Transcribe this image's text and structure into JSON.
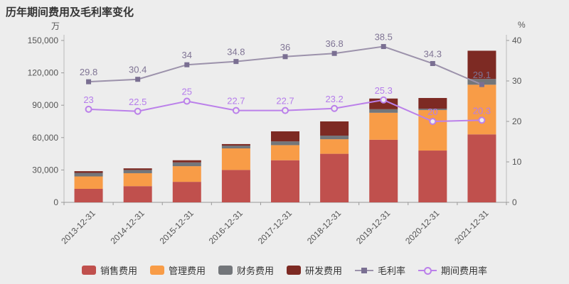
{
  "title": "历年期间费用及毛利率变化",
  "left_axis_unit": "万",
  "right_axis_unit": "%",
  "colors": {
    "background": "#ededed",
    "sales": "#c0504d",
    "admin": "#f89c47",
    "finance": "#73767a",
    "rd": "#7d2a23",
    "gross_margin": "#9c92ab",
    "gross_margin_marker": "#7a6f92",
    "gross_margin_label": "#7f7494",
    "expense_ratio": "#bb80ea",
    "axis_line": "#bbbbbb",
    "tick_text": "#555555"
  },
  "chart_data": {
    "type": "bar",
    "title": "历年期间费用及毛利率变化",
    "categories": [
      "2013-12-31",
      "2014-12-31",
      "2015-12-31",
      "2016-12-31",
      "2017-12-31",
      "2018-12-31",
      "2019-12-31",
      "2020-12-31",
      "2021-12-31"
    ],
    "bar_series": [
      {
        "name": "销售费用",
        "color": "#c0504d",
        "values": [
          12500,
          15000,
          19000,
          30000,
          39000,
          45000,
          58000,
          48000,
          63000
        ]
      },
      {
        "name": "管理费用",
        "color": "#f89c47",
        "values": [
          11500,
          12000,
          14500,
          20000,
          14000,
          13500,
          25000,
          37500,
          46000
        ]
      },
      {
        "name": "财务费用",
        "color": "#73767a",
        "values": [
          3300,
          3000,
          3500,
          2600,
          3500,
          3300,
          3300,
          1300,
          5300
        ]
      },
      {
        "name": "研发费用",
        "color": "#7d2a23",
        "values": [
          1600,
          1500,
          2000,
          1400,
          9300,
          13200,
          9900,
          9900,
          26200
        ]
      }
    ],
    "line_series": [
      {
        "name": "毛利率",
        "axis": "right",
        "marker": "square",
        "color": "#9c92ab",
        "marker_color": "#7a6f92",
        "label_color": "#7f7494",
        "values": [
          29.8,
          30.4,
          34,
          34.8,
          36,
          36.8,
          38.5,
          34.3,
          29.1
        ]
      },
      {
        "name": "期间费用率",
        "axis": "right",
        "marker": "circle-open",
        "color": "#bb80ea",
        "marker_color": "#bb80ea",
        "label_color": "#b57ceb",
        "values": [
          23,
          22.5,
          25,
          22.7,
          22.7,
          23.2,
          25.3,
          20,
          20.3
        ]
      }
    ],
    "left_axis": {
      "min": 0,
      "max": 150000,
      "ticks": [
        0,
        30000,
        60000,
        90000,
        120000,
        150000
      ],
      "unit": "万"
    },
    "right_axis": {
      "min": 0,
      "max": 40,
      "ticks": [
        0,
        10,
        20,
        30,
        40
      ],
      "unit": "%"
    },
    "grid": false,
    "legend_position": "bottom"
  },
  "legend": [
    {
      "label": "销售费用",
      "type": "bar",
      "color": "#c0504d"
    },
    {
      "label": "管理费用",
      "type": "bar",
      "color": "#f89c47"
    },
    {
      "label": "财务费用",
      "type": "bar",
      "color": "#73767a"
    },
    {
      "label": "研发费用",
      "type": "bar",
      "color": "#7d2a23"
    },
    {
      "label": "毛利率",
      "type": "line-square",
      "color": "#9c92ab",
      "marker_color": "#7a6f92"
    },
    {
      "label": "期间费用率",
      "type": "line-circle",
      "color": "#bb80ea"
    }
  ]
}
